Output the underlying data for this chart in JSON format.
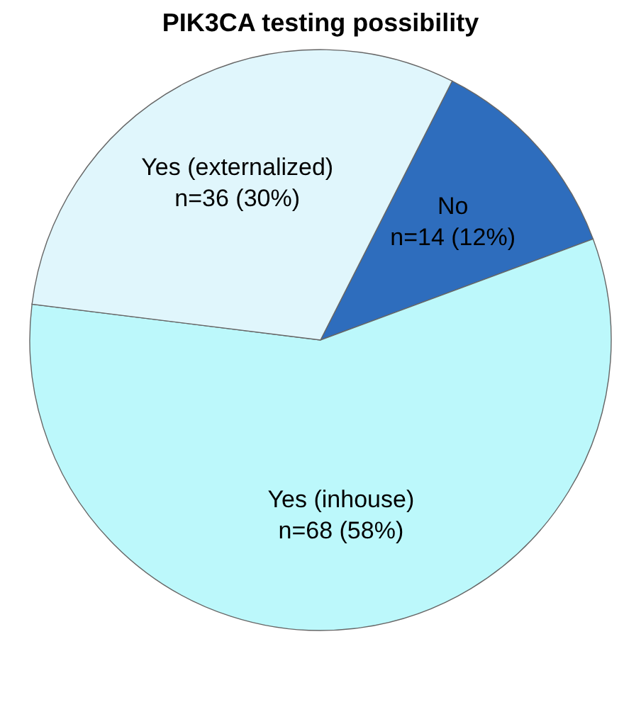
{
  "chart_data": {
    "type": "pie",
    "title": "PIK3CA testing possibility",
    "categories": [
      "No",
      "Yes (inhouse)",
      "Yes (externalized)"
    ],
    "values": [
      14,
      68,
      36
    ],
    "value_labels": [
      "n=14 (12%)",
      "n=68 (58%)",
      "n=36 (30%)"
    ],
    "colors": [
      "#2e6dbd",
      "#bcf8fb",
      "#e0f6fc"
    ]
  }
}
